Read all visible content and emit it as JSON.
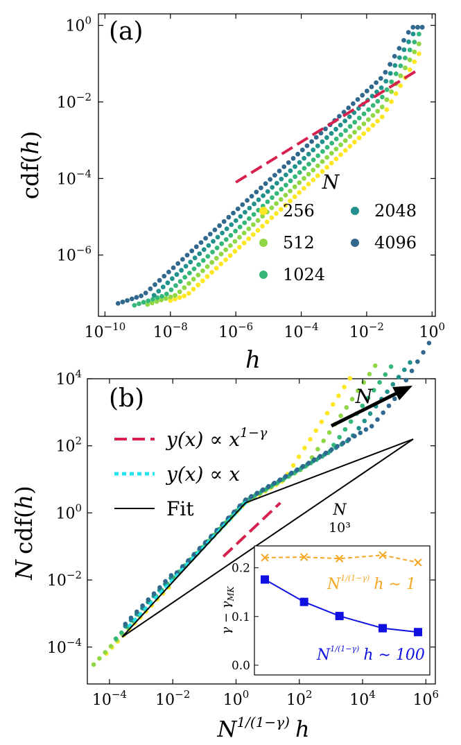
{
  "panel_a": {
    "label": "(a)",
    "ylabel_prefix": "cdf(",
    "ylabel_var": "h",
    "ylabel_suffix": ")",
    "xlabel": "h",
    "legend_title": "N",
    "xticks": [
      {
        "b": "10",
        "e": "−10",
        "v": -10
      },
      {
        "b": "10",
        "e": "−8",
        "v": -8
      },
      {
        "b": "10",
        "e": "−6",
        "v": -6
      },
      {
        "b": "10",
        "e": "−4",
        "v": -4
      },
      {
        "b": "10",
        "e": "−2",
        "v": -2
      },
      {
        "b": "10",
        "e": "0",
        "v": 0
      }
    ],
    "yticks": [
      {
        "b": "10",
        "e": "−6",
        "v": -6
      },
      {
        "b": "10",
        "e": "−4",
        "v": -4
      },
      {
        "b": "10",
        "e": "−2",
        "v": -2
      },
      {
        "b": "10",
        "e": "0",
        "v": 0
      }
    ]
  },
  "panel_b": {
    "label": "(b)",
    "ylabel_prefix": "N",
    "ylabel_rest": "cdf(",
    "ylabel_var": "h",
    "ylabel_suffix": ")",
    "xlabel_base": "N",
    "xlabel_exp": "1/(1−γ)",
    "xlabel_var": "h",
    "arrow_label": "N",
    "scale_label_top": "N",
    "scale_label_bottom": "10³",
    "legend": [
      {
        "text": "y(x) ∝ x",
        "sup": "1−γ",
        "color": "#d6204e",
        "style": "dash"
      },
      {
        "text": "y(x) ∝ x",
        "sup": "",
        "color": "#22e3ef",
        "style": "dot"
      },
      {
        "text": "Fit",
        "sup": "",
        "color": "#000000",
        "style": "solid"
      }
    ],
    "xticks": [
      {
        "b": "10",
        "e": "−4",
        "v": -4
      },
      {
        "b": "10",
        "e": "−2",
        "v": -2
      },
      {
        "b": "10",
        "e": "0",
        "v": 0
      },
      {
        "b": "10",
        "e": "2",
        "v": 2
      },
      {
        "b": "10",
        "e": "4",
        "v": 4
      },
      {
        "b": "10",
        "e": "6",
        "v": 6
      }
    ],
    "yticks": [
      {
        "b": "10",
        "e": "−4",
        "v": -4
      },
      {
        "b": "10",
        "e": "−2",
        "v": -2
      },
      {
        "b": "10",
        "e": "0",
        "v": 0
      },
      {
        "b": "10",
        "e": "2",
        "v": 2
      },
      {
        "b": "10",
        "e": "4",
        "v": 4
      }
    ]
  },
  "inset": {
    "ylabel": "γ − γ",
    "ylabel_sub": "MK",
    "yticks": [
      "0.0",
      "0.1",
      "0.2"
    ],
    "label1_base": "N",
    "label1_exp": "1/(1−γ)",
    "label1_rest": "h ∼ 1",
    "label2_base": "N",
    "label2_exp": "1/(1−γ)",
    "label2_rest": "h ∼ 100",
    "color_orange": "#f5a623",
    "color_blue": "#1010e0"
  },
  "chart_data": [
    {
      "type": "scatter",
      "xscale": "log",
      "yscale": "log",
      "xlim_log10": [
        -10.2,
        0.1
      ],
      "ylim_log10": [
        -7.6,
        0.3
      ],
      "series": [
        {
          "name": "256",
          "color": "#fde725",
          "x_log10_range": [
            -8.0,
            -0.4
          ]
        },
        {
          "name": "512",
          "color": "#8fd744",
          "x_log10_range": [
            -8.7,
            -0.4
          ]
        },
        {
          "name": "1024",
          "color": "#35b779",
          "x_log10_range": [
            -9.1,
            -0.4
          ]
        },
        {
          "name": "2048",
          "color": "#21918c",
          "x_log10_range": [
            -8.5,
            -0.3
          ]
        },
        {
          "name": "4096",
          "color": "#31688e",
          "x_log10_range": [
            -9.6,
            -0.3
          ]
        }
      ],
      "reference_line": {
        "color": "#d6204e",
        "style": "dash",
        "x_log10": [
          -6.0,
          -0.5
        ],
        "y_log10": [
          -4.1,
          -1.2
        ]
      }
    },
    {
      "type": "scatter",
      "xscale": "log",
      "yscale": "log",
      "xlim_log10": [
        -4.7,
        6.3
      ],
      "ylim_log10": [
        -5.1,
        4.0
      ],
      "reference_lines": [
        {
          "label": "y(x) ∝ x^(1−γ)",
          "color": "#d6204e",
          "x_log10": [
            -0.4,
            1.4
          ],
          "y_log10": [
            -1.3,
            0.3
          ]
        },
        {
          "label": "y(x) ∝ x",
          "color": "#22e3ef",
          "x_log10": [
            -3.4,
            0.4
          ],
          "y_log10": [
            -3.4,
            0.4
          ]
        },
        {
          "label": "Fit",
          "color": "#000000",
          "x_log10": [
            -3.6,
            5.6
          ],
          "y_log10": [
            -3.7,
            2.2
          ]
        }
      ]
    },
    {
      "type": "line",
      "x_log10": [
        2.4,
        3.4,
        4.3,
        5.4,
        6.3
      ],
      "ylim": [
        -0.02,
        0.245
      ],
      "series": [
        {
          "name": "h ∼ 1",
          "color": "#f5a623",
          "marker": "x",
          "style": "dash",
          "values": [
            0.221,
            0.222,
            0.219,
            0.226,
            0.211
          ]
        },
        {
          "name": "h ∼ 100",
          "color": "#1010e0",
          "marker": "square",
          "style": "solid",
          "values": [
            0.176,
            0.13,
            0.101,
            0.076,
            0.068
          ]
        }
      ]
    }
  ]
}
